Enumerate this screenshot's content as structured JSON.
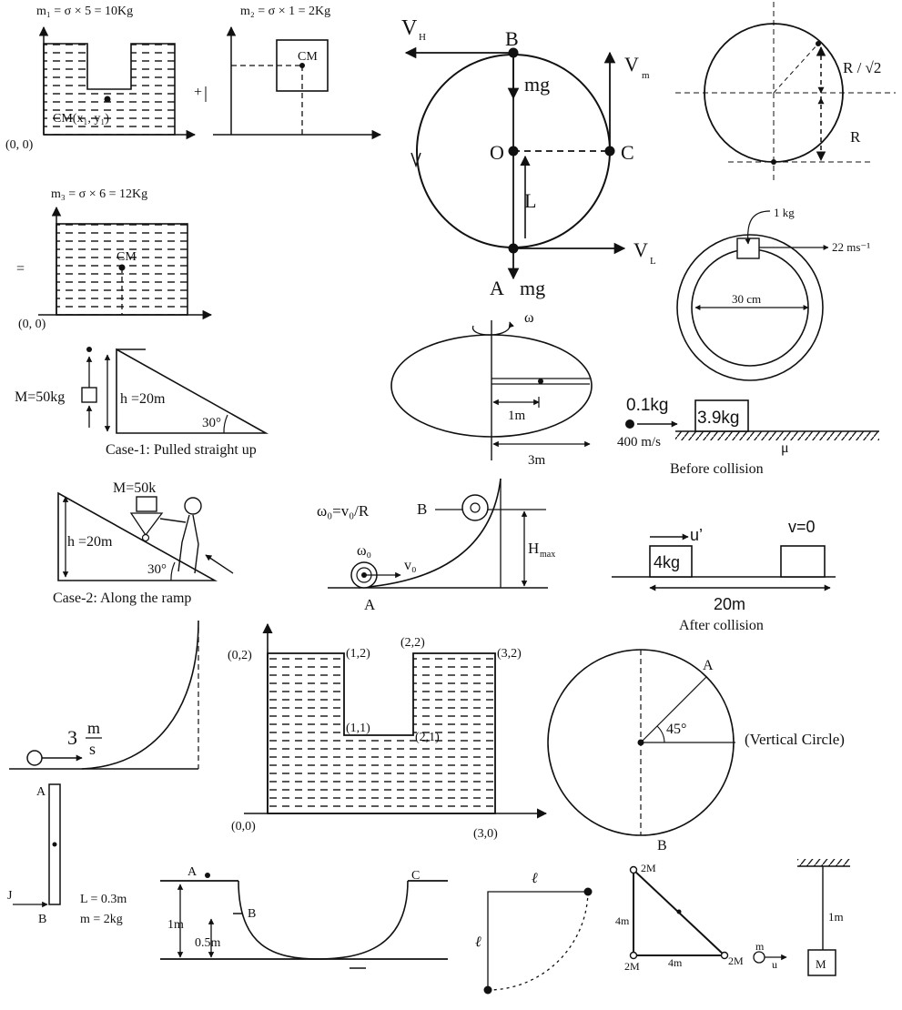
{
  "cm_panel": {
    "m1": "m₁ = σ × 5 = 10Kg",
    "m2": "m₂ = σ × 1 = 2Kg",
    "m3": "m₃ = σ × 6 = 12Kg",
    "cm_x1y1": "CM(x₁, y₁)",
    "cm": "CM",
    "origin": "(0, 0)",
    "plus": "+",
    "equals": "="
  },
  "vertical_loop": {
    "vh": "V",
    "vh_sub": "H",
    "b": "B",
    "mg_top": "mg",
    "vm": "V",
    "vm_sub": "m",
    "o": "O",
    "c": "C",
    "l": "L",
    "vl": "V",
    "vl_sub": "L",
    "a": "A",
    "mg_bottom": "mg"
  },
  "circle_r": {
    "r_over_root2": "R / √2",
    "r": "R"
  },
  "ring": {
    "mass": "1 kg",
    "speed": "22 ms⁻¹",
    "diameter": "30 cm"
  },
  "incline_case1": {
    "mass": "M=50kg",
    "height": "h =20m",
    "angle": "30°",
    "caption": "Case-1: Pulled straight up"
  },
  "disc": {
    "omega": "ω",
    "r1": "1m",
    "r2": "3m"
  },
  "collision_before": {
    "m_bullet": "0.1kg",
    "m_block": "3.9kg",
    "speed": "400 m/s",
    "mu": "μ",
    "caption": "Before collision"
  },
  "incline_case2": {
    "mass": "M=50k",
    "height": "h =20m",
    "angle": "30°",
    "caption": "Case-2: Along the ramp"
  },
  "rolling": {
    "omega_eq": "ω₀=v₀/R",
    "b": "B",
    "omega0": "ω₀",
    "v0": "v₀",
    "a": "A",
    "hmax": "H",
    "hmax_sub": "max"
  },
  "collision_after": {
    "u_prime": "u’",
    "v_zero": "v=0",
    "mass": "4kg",
    "dist": "20m",
    "caption": "After collision"
  },
  "quarter_track": {
    "speed": "3",
    "unit_num": "m",
    "unit_den": "s"
  },
  "u_shape": {
    "p02": "(0,2)",
    "p12": "(1,2)",
    "p22": "(2,2)",
    "p32": "(3,2)",
    "p11": "(1,1)",
    "p21": "(2,1)",
    "p00": "(0,0)",
    "p30": "(3,0)"
  },
  "vcircle": {
    "a": "A",
    "angle": "45°",
    "caption": "(Vertical Circle)",
    "b": "B"
  },
  "rod": {
    "a": "A",
    "j": "J",
    "b": "B",
    "length": "L = 0.3m",
    "mass": "m = 2kg"
  },
  "bowl": {
    "a": "A",
    "b": "B",
    "c": "C",
    "h1": "1m",
    "h2": "0.5m"
  },
  "pendulum_l": {
    "l_top": "ℓ",
    "l_side": "ℓ"
  },
  "triangle": {
    "top": "2M",
    "bl": "2M",
    "br": "2M",
    "side": "4m",
    "base": "4m",
    "m": "m",
    "u": "u"
  },
  "hanging": {
    "length": "1m",
    "mass": "M"
  }
}
